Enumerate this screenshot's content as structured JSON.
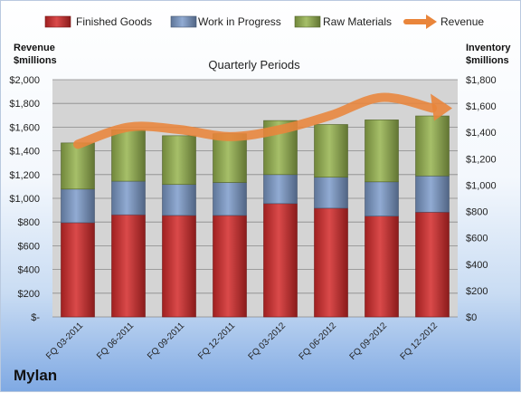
{
  "brand": "Mylan",
  "chart_data": {
    "type": "bar",
    "stacked": true,
    "title": "Quarterly Periods",
    "ylabel_left": "Revenue\n$millions",
    "ylabel_right": "Inventory\n$millions",
    "categories": [
      "FQ 03-2011",
      "FQ 06-2011",
      "FQ 09-2011",
      "FQ 12-2011",
      "FQ 03-2012",
      "FQ 06-2012",
      "FQ 09-2012",
      "FQ 12-2012"
    ],
    "ylim_left": [
      0,
      2000
    ],
    "ylim_right": [
      0,
      1800
    ],
    "yticks_left": [
      "$-",
      "$200",
      "$400",
      "$600",
      "$800",
      "$1,000",
      "$1,200",
      "$1,400",
      "$1,600",
      "$1,800",
      "$2,000"
    ],
    "yticks_right": [
      "$0",
      "$200",
      "$400",
      "$600",
      "$800",
      "$1,000",
      "$1,200",
      "$1,400",
      "$1,600",
      "$1,800"
    ],
    "series": [
      {
        "name": "Finished Goods",
        "axis": "right",
        "color": "#d42a2a",
        "values": [
          715,
          775,
          770,
          770,
          860,
          825,
          765,
          795
        ]
      },
      {
        "name": "Work in Progress",
        "axis": "right",
        "color": "#7d9ccb",
        "values": [
          255,
          255,
          235,
          250,
          220,
          235,
          260,
          275
        ]
      },
      {
        "name": "Raw Materials",
        "axis": "right",
        "color": "#96b44f",
        "values": [
          350,
          390,
          370,
          370,
          410,
          400,
          470,
          455
        ]
      },
      {
        "name": "Revenue",
        "axis": "left",
        "type": "line",
        "color": "#e9853b",
        "values": [
          1455,
          1600,
          1580,
          1520,
          1580,
          1700,
          1850,
          1760
        ]
      }
    ],
    "grid": true,
    "legend": "top"
  }
}
